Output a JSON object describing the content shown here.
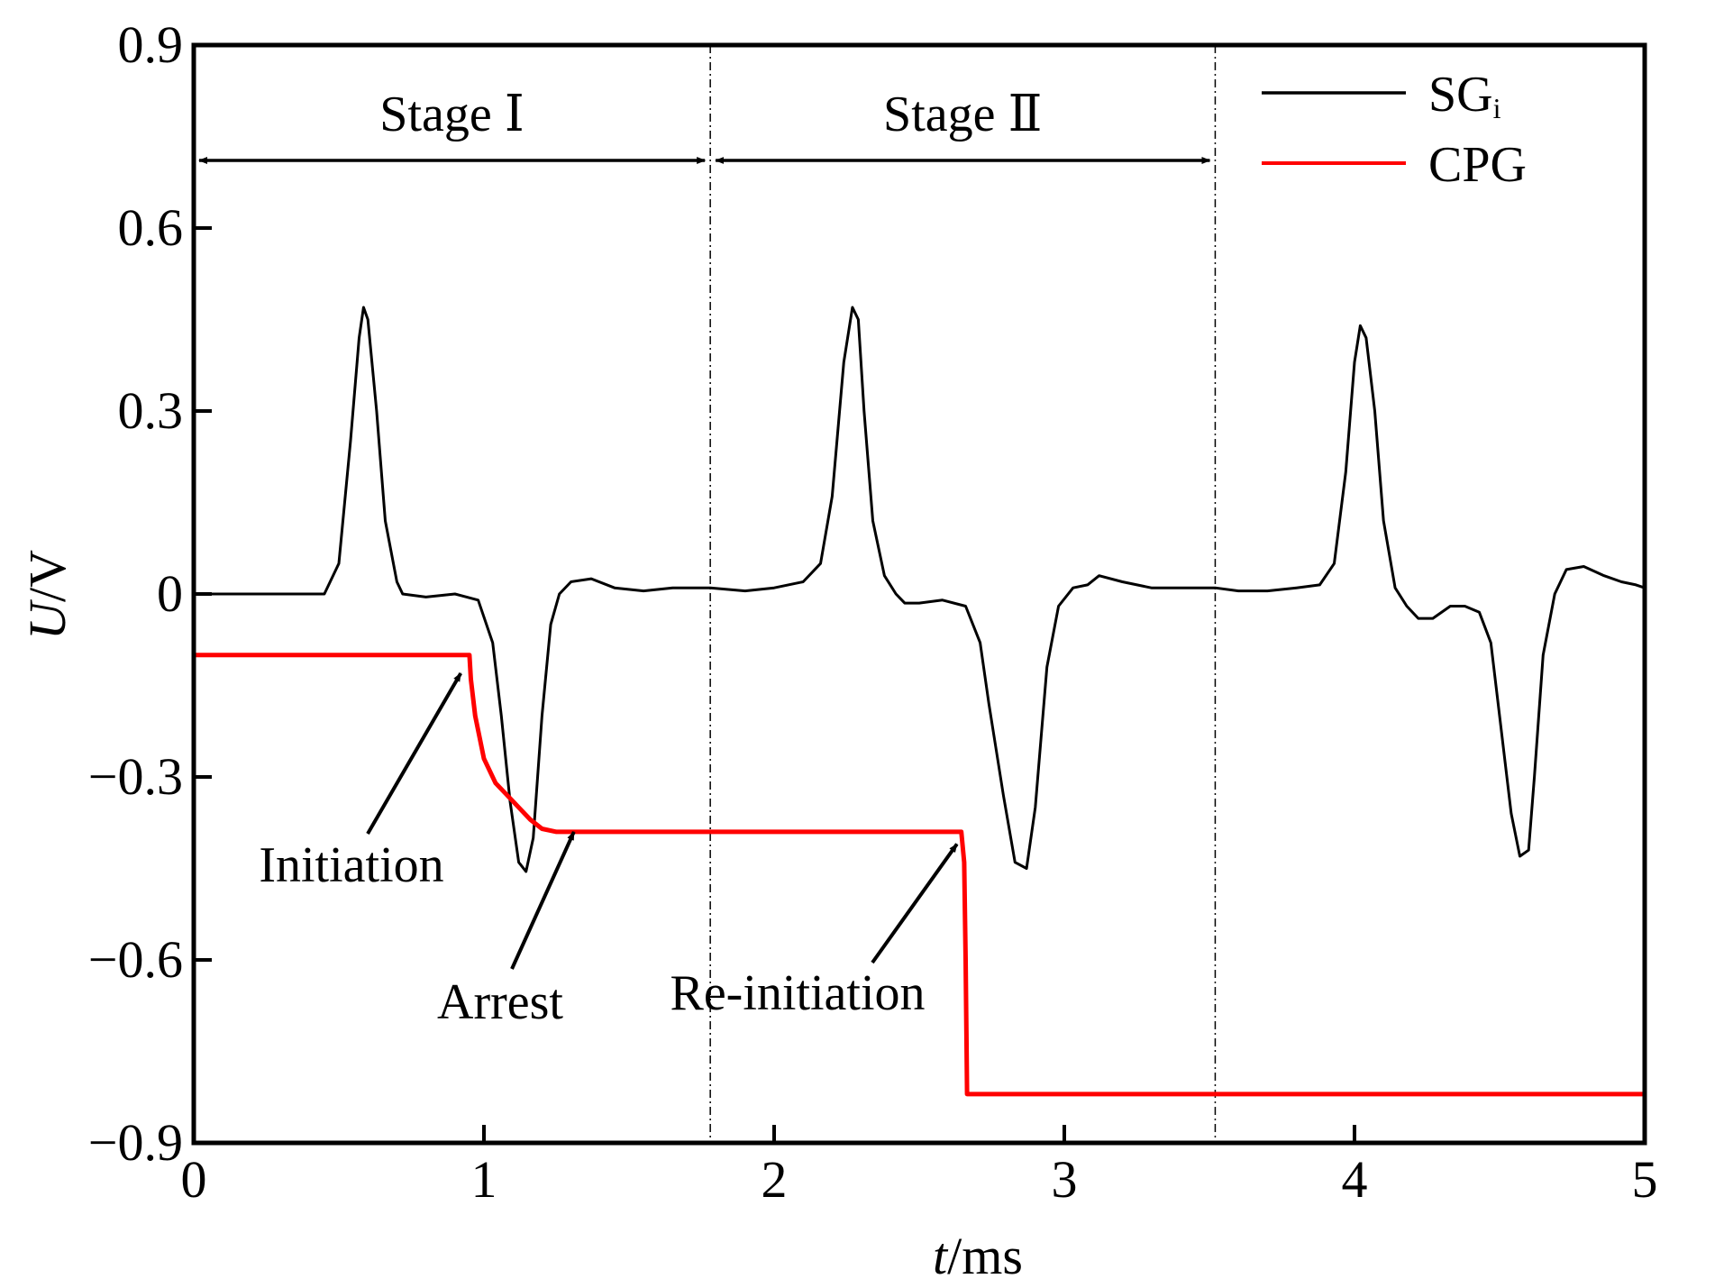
{
  "chart_data": {
    "type": "line",
    "xlabel_italic": "t",
    "xlabel_unit": "/ms",
    "ylabel_italic": "U",
    "ylabel_unit": "/V",
    "xlim": [
      0,
      5
    ],
    "ylim": [
      -0.9,
      0.9
    ],
    "x_ticks": [
      "0",
      "1",
      "2",
      "3",
      "4",
      "5"
    ],
    "y_ticks": [
      "0.9",
      "0.6",
      "0.3",
      "0",
      "−0.3",
      "−0.6",
      "−0.9"
    ],
    "y_tick_values": [
      0.9,
      0.6,
      0.3,
      0,
      -0.3,
      -0.6,
      -0.9
    ],
    "grid": false,
    "legend_position": "top-right",
    "stage_dividers_x": [
      1.78,
      3.52
    ],
    "stages": [
      {
        "label": "Stage Ⅰ",
        "x_start": 0,
        "x_end": 1.78
      },
      {
        "label": "Stage Ⅱ",
        "x_start": 1.78,
        "x_end": 3.52
      }
    ],
    "annotations": [
      {
        "text": "Initiation",
        "target": [
          0.92,
          -0.13
        ]
      },
      {
        "text": "Arrest",
        "target": [
          1.31,
          -0.39
        ]
      },
      {
        "text": "Re-initiation",
        "target": [
          2.63,
          -0.41
        ]
      }
    ],
    "series": [
      {
        "name": "SG",
        "name_subscript": "i",
        "color": "#000000",
        "x": [
          0,
          0.45,
          0.5,
          0.54,
          0.57,
          0.585,
          0.6,
          0.63,
          0.66,
          0.7,
          0.72,
          0.8,
          0.9,
          0.98,
          1.03,
          1.06,
          1.09,
          1.12,
          1.145,
          1.17,
          1.2,
          1.23,
          1.26,
          1.3,
          1.37,
          1.45,
          1.55,
          1.65,
          1.78,
          1.9,
          2.0,
          2.1,
          2.16,
          2.2,
          2.24,
          2.27,
          2.29,
          2.31,
          2.34,
          2.38,
          2.42,
          2.45,
          2.5,
          2.58,
          2.66,
          2.71,
          2.74,
          2.79,
          2.83,
          2.87,
          2.9,
          2.94,
          2.98,
          3.03,
          3.08,
          3.12,
          3.2,
          3.3,
          3.4,
          3.52,
          3.6,
          3.7,
          3.8,
          3.88,
          3.93,
          3.97,
          4.0,
          4.02,
          4.04,
          4.07,
          4.1,
          4.14,
          4.18,
          4.22,
          4.27,
          4.33,
          4.38,
          4.43,
          4.47,
          4.5,
          4.54,
          4.57,
          4.6,
          4.62,
          4.65,
          4.69,
          4.73,
          4.79,
          4.86,
          4.92,
          4.97,
          5.0
        ],
        "y": [
          0,
          0.0,
          0.05,
          0.25,
          0.42,
          0.47,
          0.45,
          0.3,
          0.12,
          0.02,
          0.0,
          -0.005,
          0.0,
          -0.01,
          -0.08,
          -0.2,
          -0.34,
          -0.44,
          -0.455,
          -0.4,
          -0.2,
          -0.05,
          0.0,
          0.02,
          0.025,
          0.01,
          0.005,
          0.01,
          0.01,
          0.005,
          0.01,
          0.02,
          0.05,
          0.16,
          0.38,
          0.47,
          0.45,
          0.3,
          0.12,
          0.03,
          0.0,
          -0.015,
          -0.015,
          -0.01,
          -0.02,
          -0.08,
          -0.18,
          -0.33,
          -0.44,
          -0.45,
          -0.35,
          -0.12,
          -0.02,
          0.01,
          0.015,
          0.03,
          0.02,
          0.01,
          0.01,
          0.01,
          0.005,
          0.005,
          0.01,
          0.015,
          0.05,
          0.2,
          0.38,
          0.44,
          0.42,
          0.3,
          0.12,
          0.01,
          -0.02,
          -0.04,
          -0.04,
          -0.02,
          -0.02,
          -0.03,
          -0.08,
          -0.2,
          -0.36,
          -0.43,
          -0.42,
          -0.3,
          -0.1,
          0.0,
          0.04,
          0.045,
          0.03,
          0.02,
          0.015,
          0.01
        ]
      },
      {
        "name": "CPG",
        "color": "#ff0000",
        "x": [
          0,
          0.95,
          0.955,
          0.97,
          1.0,
          1.04,
          1.08,
          1.12,
          1.16,
          1.2,
          1.25,
          1.78,
          2.6,
          2.645,
          2.655,
          2.66,
          2.665,
          2.7,
          3.52,
          5.0
        ],
        "y": [
          -0.1,
          -0.1,
          -0.14,
          -0.2,
          -0.27,
          -0.31,
          -0.33,
          -0.35,
          -0.37,
          -0.385,
          -0.39,
          -0.39,
          -0.39,
          -0.39,
          -0.44,
          -0.6,
          -0.82,
          -0.82,
          -0.82,
          -0.82
        ]
      }
    ]
  }
}
